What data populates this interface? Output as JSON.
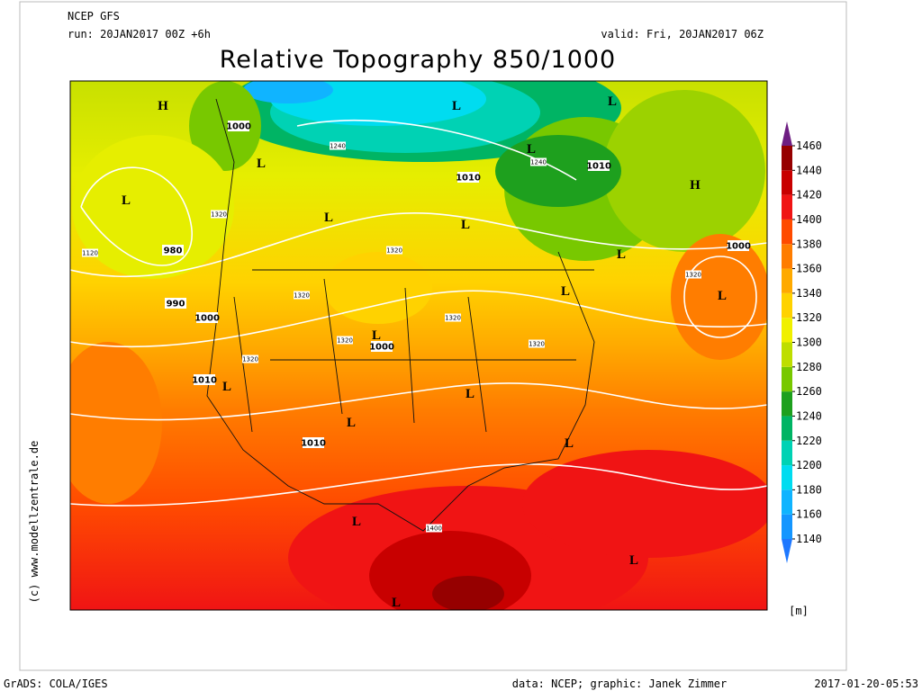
{
  "header": {
    "model": "NCEP GFS",
    "run": "run: 20JAN2017 00Z +6h",
    "valid": "valid: Fri, 20JAN2017 06Z",
    "title": "Relative Topography 850/1000"
  },
  "side_credit": "(c) www.modellzentrale.de",
  "map_labels": [
    "H",
    "1000",
    "L",
    "1240",
    "L",
    "L",
    "L",
    "1240",
    "1010",
    "1010",
    "H",
    "L",
    "1320",
    "L",
    "L",
    "1120",
    "980",
    "1320",
    "L",
    "1000",
    "1320",
    "L",
    "L",
    "1320",
    "990",
    "1000",
    "1320",
    "1320",
    "L",
    "1000",
    "1320",
    "1320",
    "1010",
    "L",
    "L",
    "L",
    "1010",
    "L",
    "L",
    "1400",
    "L",
    "L"
  ],
  "legend": {
    "unit": "[m]",
    "levels": [
      1140,
      1160,
      1180,
      1200,
      1220,
      1240,
      1260,
      1280,
      1300,
      1320,
      1340,
      1360,
      1380,
      1400,
      1420,
      1440,
      1460
    ],
    "colors": [
      "#1e78ff",
      "#1496ff",
      "#10b4ff",
      "#00dcf0",
      "#00d2b4",
      "#00b464",
      "#1ea01e",
      "#78c800",
      "#bede00",
      "#f0f000",
      "#ffd200",
      "#ffaa00",
      "#ff7d00",
      "#ff4b00",
      "#f01414",
      "#c80000",
      "#960000",
      "#640000",
      "#6e1e82"
    ]
  },
  "footer": {
    "left": "GrADS: COLA/IGES",
    "center": "data: NCEP; graphic: Janek Zimmer",
    "right": "2017-01-20-05:53"
  }
}
